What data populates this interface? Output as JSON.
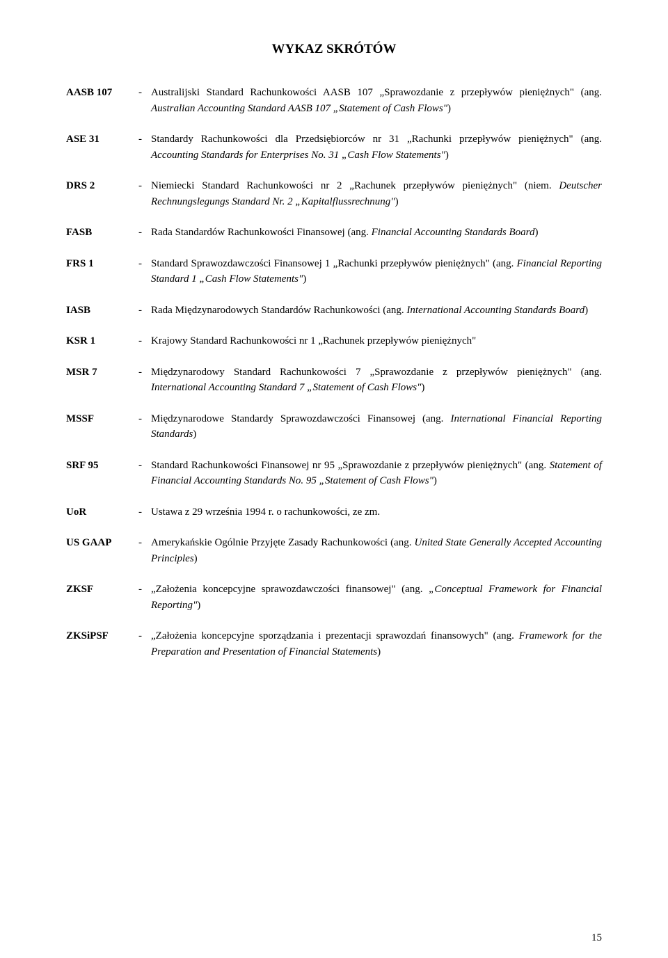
{
  "title": "WYKAZ SKRÓTÓW",
  "entries": [
    {
      "abbr": "AASB 107",
      "pre": "Australijski Standard Rachunkowości AASB 107 „Sprawozdanie z przepływów pieniężnych\" (ang. ",
      "italic": "Australian Accounting Standard AASB 107 „Statement of Cash Flows\"",
      "post": ")"
    },
    {
      "abbr": "ASE 31",
      "pre": "Standardy Rachunkowości dla Przedsiębiorców nr 31 „Rachunki przepływów pieniężnych\" (ang. ",
      "italic": "Accounting Standards for Enterprises No. 31 „Cash Flow Statements\"",
      "post": ")"
    },
    {
      "abbr": "DRS 2",
      "pre": "Niemiecki Standard Rachunkowości nr 2 „Rachunek przepływów pieniężnych\" (niem.",
      "italic": " Deutscher Rechnungslegungs Standard Nr. 2 „Kapitalflussrechnung\"",
      "post": ")"
    },
    {
      "abbr": "FASB",
      "pre": "Rada Standardów Rachunkowości Finansowej (ang.",
      "italic": " Financial Accounting Standards Board",
      "post": ")"
    },
    {
      "abbr": "FRS 1",
      "pre": "Standard Sprawozdawczości Finansowej 1 „Rachunki przepływów pieniężnych\" (ang.",
      "italic": " Financial Reporting Standard 1 „Cash Flow Statements\"",
      "post": ")"
    },
    {
      "abbr": "IASB",
      "pre": "Rada Międzynarodowych Standardów Rachunkowości (ang.",
      "italic": " International Accounting Standards Board",
      "post": ")"
    },
    {
      "abbr": "KSR 1",
      "pre": "Krajowy Standard Rachunkowości nr 1 „Rachunek przepływów pieniężnych\"",
      "italic": "",
      "post": ""
    },
    {
      "abbr": "MSR 7",
      "pre": "Międzynarodowy Standard Rachunkowości 7 „Sprawozdanie z przepływów pieniężnych\" (ang.",
      "italic": " International Accounting Standard 7 „Statement of Cash Flows\"",
      "post": ")"
    },
    {
      "abbr": "MSSF",
      "pre": "Międzynarodowe Standardy Sprawozdawczości Finansowej (ang.",
      "italic": " International Financial Reporting Standards",
      "post": ")"
    },
    {
      "abbr": "SRF 95",
      "pre": "Standard Rachunkowości Finansowej nr 95 „Sprawozdanie z przepływów pieniężnych\" (ang. ",
      "italic": "Statement of Financial Accounting Standards No. 95 „Statement of Cash Flows\"",
      "post": ")"
    },
    {
      "abbr": "UoR",
      "pre": "Ustawa z 29 września 1994 r. o rachunkowości, ze zm.",
      "italic": "",
      "post": ""
    },
    {
      "abbr": "US GAAP",
      "pre": "Amerykańskie Ogólnie Przyjęte Zasady Rachunkowości (ang.",
      "italic": " United State Generally Accepted Accounting Principles",
      "post": ")"
    },
    {
      "abbr": "ZKSF",
      "pre": "„Założenia koncepcyjne sprawozdawczości finansowej\" (ang. ",
      "italic": "„Conceptual Framework for Financial Reporting\"",
      "post": ")"
    },
    {
      "abbr": "ZKSiPSF",
      "pre": "„Założenia koncepcyjne sporządzania i prezentacji sprawozdań finansowych\" (ang. ",
      "italic": "Framework for the Preparation and Presentation of Financial Statements",
      "post": ")"
    }
  ],
  "page_number": "15"
}
